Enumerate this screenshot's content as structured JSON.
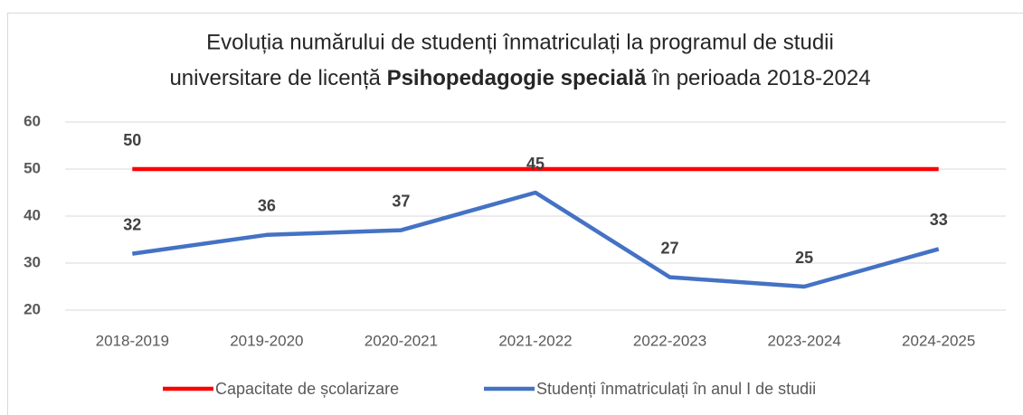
{
  "chart_data": {
    "type": "line",
    "title": {
      "line1": "Evoluția numărului de studenți înmatriculați la programul de studii",
      "line2": [
        "universitare de licență",
        "Psihopedagogie specială",
        "în perioada 2018-2024"
      ]
    },
    "categories": [
      "2018-2019",
      "2019-2020",
      "2020-2021",
      "2021-2022",
      "2022-2023",
      "2023-2024",
      "2024-2025"
    ],
    "series": [
      {
        "name": "Capacitate de școlarizare",
        "color": "#ff0000",
        "values": [
          50,
          50,
          50,
          50,
          50,
          50,
          50
        ],
        "value_labels": [
          "50",
          null,
          null,
          null,
          null,
          null,
          null
        ]
      },
      {
        "name": "Studenți înmatriculați în anul I de studii",
        "color": "#4472c4",
        "values": [
          32,
          36,
          37,
          45,
          27,
          25,
          33
        ]
      }
    ],
    "ylim": [
      20,
      60
    ],
    "yticks": [
      20,
      30,
      40,
      50,
      60
    ],
    "grid": true,
    "legend": "bottom"
  }
}
